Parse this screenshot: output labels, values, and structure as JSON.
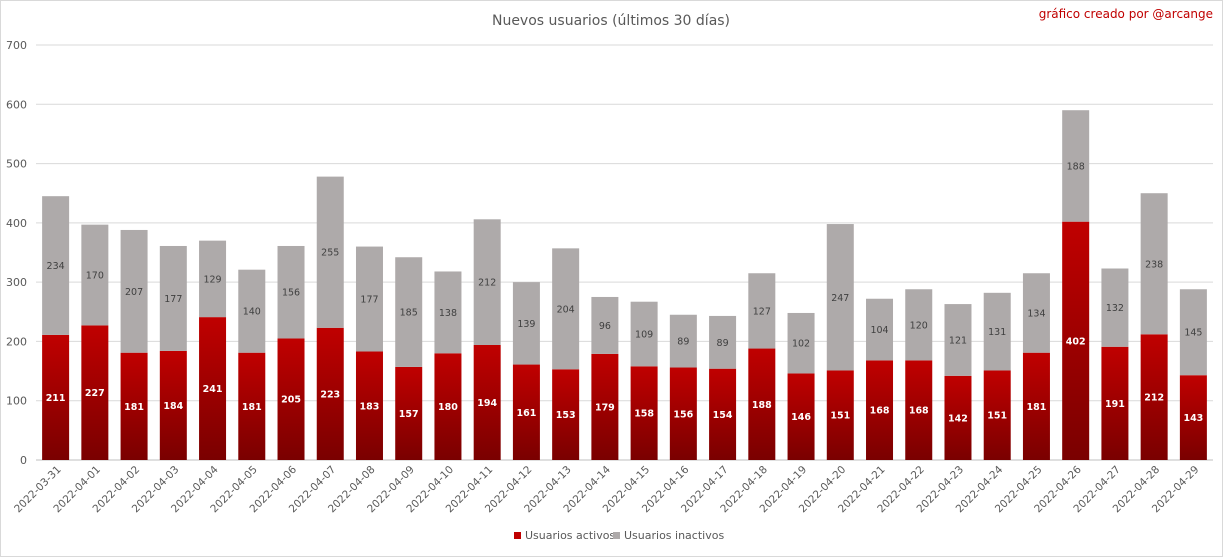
{
  "chart_data": {
    "type": "bar",
    "stacked": true,
    "title": "Nuevos usuarios (últimos 30 días)",
    "credit": "gráfico creado por @arcange",
    "ylim": [
      0,
      700
    ],
    "yticks": [
      0,
      100,
      200,
      300,
      400,
      500,
      600,
      700
    ],
    "grid": true,
    "legend_position": "bottom",
    "categories": [
      "2022-03-31",
      "2022-04-01",
      "2022-04-02",
      "2022-04-03",
      "2022-04-04",
      "2022-04-05",
      "2022-04-06",
      "2022-04-07",
      "2022-04-08",
      "2022-04-09",
      "2022-04-10",
      "2022-04-11",
      "2022-04-12",
      "2022-04-13",
      "2022-04-14",
      "2022-04-15",
      "2022-04-16",
      "2022-04-17",
      "2022-04-18",
      "2022-04-19",
      "2022-04-20",
      "2022-04-21",
      "2022-04-22",
      "2022-04-23",
      "2022-04-24",
      "2022-04-25",
      "2022-04-26",
      "2022-04-27",
      "2022-04-28",
      "2022-04-29"
    ],
    "series": [
      {
        "name": "Usuarios activos",
        "color": "#c00000",
        "color_dark": "#7a0000",
        "values": [
          211,
          227,
          181,
          184,
          241,
          181,
          205,
          223,
          183,
          157,
          180,
          194,
          161,
          153,
          179,
          158,
          156,
          154,
          188,
          146,
          151,
          168,
          168,
          142,
          151,
          181,
          402,
          191,
          212,
          143
        ]
      },
      {
        "name": "Usuarios inactivos",
        "color": "#aeaaaa",
        "values": [
          234,
          170,
          207,
          177,
          129,
          140,
          156,
          255,
          177,
          185,
          138,
          212,
          139,
          204,
          96,
          109,
          89,
          89,
          127,
          102,
          247,
          104,
          120,
          121,
          131,
          134,
          188,
          132,
          238,
          145
        ]
      }
    ]
  }
}
